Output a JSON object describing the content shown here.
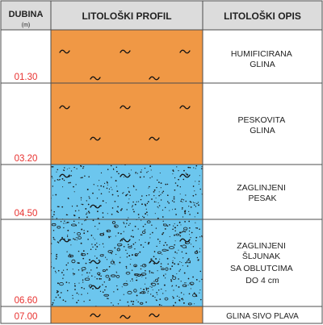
{
  "header": {
    "depth_title": "DUBINA",
    "depth_unit": "(m)",
    "profile_title": "LITOLOŠKI PROFIL",
    "description_title": "LITOLOŠKI OPIS"
  },
  "colors": {
    "border": "#4d4d4d",
    "header_bg": "#dcdcdc",
    "depth_text": "#e8312f",
    "clay": "#f09845",
    "sand": "#6cc6ee",
    "dots": "#1a1a1a"
  },
  "layers": [
    {
      "depth": "01.30",
      "description_lines": [
        "HUMIFICIRANA",
        "GLINA"
      ],
      "fill": "clay",
      "dots": false,
      "pebbles": false,
      "waves": true,
      "tildes": 5
    },
    {
      "depth": "03.20",
      "description_lines": [
        "PESKOVITA",
        "GLINA"
      ],
      "fill": "clay",
      "dots": false,
      "pebbles": false,
      "waves": true,
      "tildes": 5
    },
    {
      "depth": "04.50",
      "description_lines": [
        "ZAGLINJENI",
        "PESAK"
      ],
      "fill": "sand",
      "dots": true,
      "pebbles": false,
      "waves": true,
      "tildes": 4
    },
    {
      "depth": "06.60",
      "description_lines": [
        "ZAGLINJENI",
        "ŠLJUNAK",
        "SA OBLUTCIMA",
        "DO 4 cm"
      ],
      "fill": "sand",
      "dots": true,
      "pebbles": true,
      "waves": true,
      "tildes": 6
    },
    {
      "depth": "07.00",
      "description_lines": [
        "GLINA SIVO PLAVA"
      ],
      "fill": "clay",
      "dots": false,
      "pebbles": false,
      "waves": true,
      "tildes": 3
    }
  ]
}
